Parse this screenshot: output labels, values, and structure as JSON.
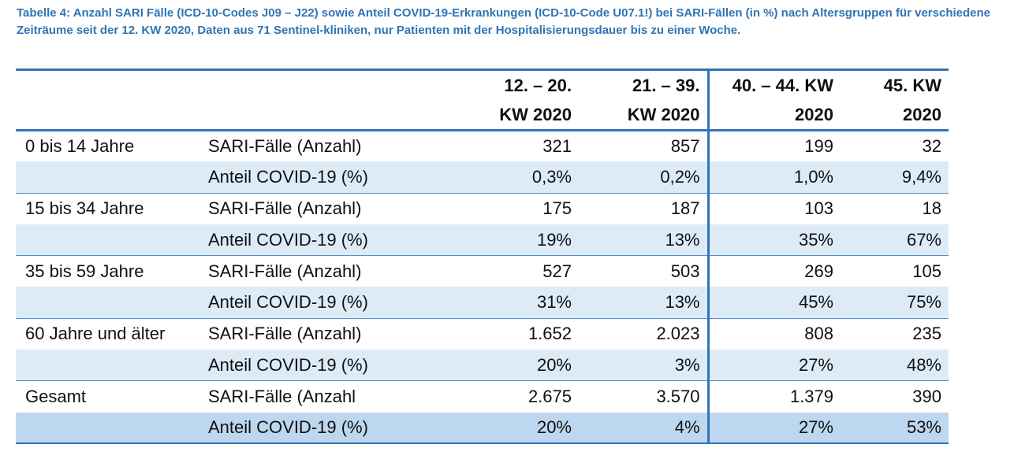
{
  "caption": "Tabelle 4: Anzahl SARI Fälle (ICD-10-Codes J09 – J22) sowie Anteil COVID-19-Erkrankungen (ICD-10-Code U07.1!) bei SARI-Fällen (in %) nach Altersgruppen für verschiedene Zeiträume seit der 12. KW 2020, Daten aus 71 Sentinel-kliniken, nur Patienten mit der Hospitalisierungsdauer bis zu einer Woche.",
  "table": {
    "columns": [
      {
        "line1": "12. – 20.",
        "line2": "KW 2020"
      },
      {
        "line1": "21. – 39.",
        "line2": "KW 2020"
      },
      {
        "line1": "40. – 44. KW",
        "line2": "2020"
      },
      {
        "line1": "45. KW",
        "line2": "2020"
      }
    ],
    "rows": [
      {
        "group": "0 bis 14 Jahre",
        "metric": "SARI-Fälle (Anzahl)",
        "values": [
          "321",
          "857",
          "199",
          "32"
        ]
      },
      {
        "group": "",
        "metric": "Anteil COVID-19 (%)",
        "values": [
          "0,3%",
          "0,2%",
          "1,0%",
          "9,4%"
        ]
      },
      {
        "group": "15 bis 34 Jahre",
        "metric": "SARI-Fälle (Anzahl)",
        "values": [
          "175",
          "187",
          "103",
          "18"
        ]
      },
      {
        "group": "",
        "metric": "Anteil COVID-19 (%)",
        "values": [
          "19%",
          "13%",
          "35%",
          "67%"
        ]
      },
      {
        "group": "35 bis 59 Jahre",
        "metric": "SARI-Fälle (Anzahl)",
        "values": [
          "527",
          "503",
          "269",
          "105"
        ]
      },
      {
        "group": "",
        "metric": "Anteil COVID-19 (%)",
        "values": [
          "31%",
          "13%",
          "45%",
          "75%"
        ]
      },
      {
        "group": "60 Jahre und älter",
        "metric": "SARI-Fälle (Anzahl)",
        "values": [
          "1.652",
          "2.023",
          "808",
          "235"
        ]
      },
      {
        "group": "",
        "metric": "Anteil COVID-19 (%)",
        "values": [
          "20%",
          "3%",
          "27%",
          "48%"
        ]
      },
      {
        "group": "Gesamt",
        "metric": "SARI-Fälle (Anzahl",
        "values": [
          "2.675",
          "3.570",
          "1.379",
          "390"
        ]
      },
      {
        "group": "",
        "metric": "Anteil COVID-19 (%)",
        "values": [
          "20%",
          "4%",
          "27%",
          "53%"
        ]
      }
    ]
  },
  "colors": {
    "caption": "#2f75b5",
    "rule": "#2f75b5",
    "row_band": "#ddebf7",
    "total_band": "#bdd7ee"
  }
}
